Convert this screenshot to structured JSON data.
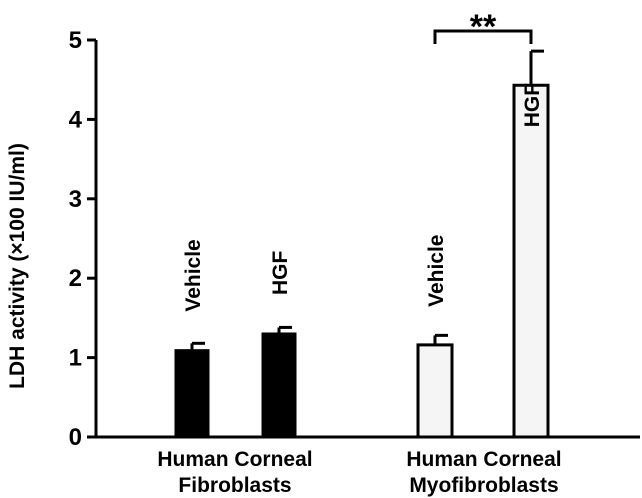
{
  "colors": {
    "fibroblast_fill": "#000000",
    "myofibroblast_fill": "#f5f5f5",
    "stroke": "#000000",
    "background": "#ffffff"
  },
  "chart_data": {
    "type": "bar",
    "title": "",
    "xlabel": "",
    "ylabel": "LDH activity (×100 IU/ml)",
    "ylim": [
      0,
      5
    ],
    "yticks": [
      "0",
      "1",
      "2",
      "3",
      "4",
      "5"
    ],
    "grid": false,
    "groups": [
      {
        "label_line1": "Human Corneal",
        "label_line2": "Fibroblasts"
      },
      {
        "label_line1": "Human Corneal",
        "label_line2": "Myofibroblasts"
      }
    ],
    "bars": [
      {
        "group": 0,
        "label": "Vehicle",
        "value": 1.1,
        "error": 0.08,
        "style": "filled"
      },
      {
        "group": 0,
        "label": "HGF",
        "value": 1.31,
        "error": 0.07,
        "style": "filled"
      },
      {
        "group": 1,
        "label": "Vehicle",
        "value": 1.16,
        "error": 0.12,
        "style": "open"
      },
      {
        "group": 1,
        "label": "HGF",
        "value": 4.43,
        "error": 0.43,
        "style": "open"
      }
    ],
    "significance": {
      "label": "**",
      "between": [
        2,
        3
      ]
    }
  }
}
